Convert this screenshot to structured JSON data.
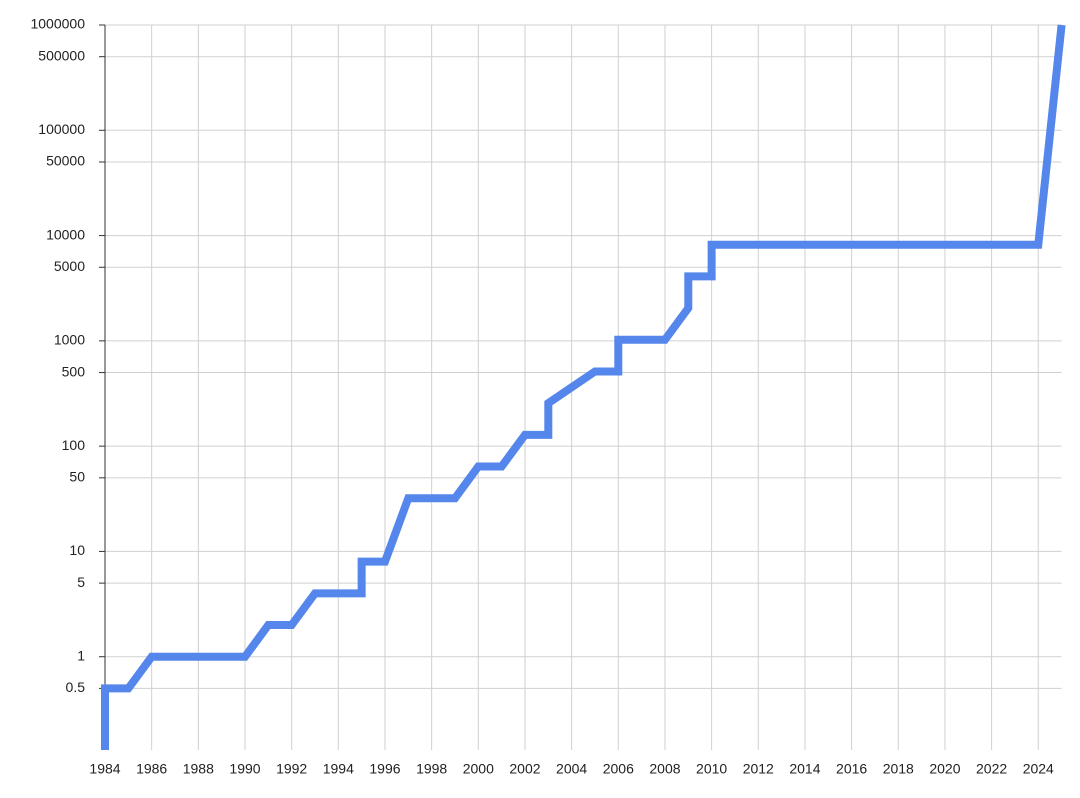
{
  "chart_data": {
    "type": "line",
    "x": [
      1984,
      1984,
      1985,
      1986,
      1990,
      1991,
      1992,
      1993,
      1995,
      1995,
      1996,
      1997,
      1999,
      2000,
      2001,
      2002,
      2003,
      2003,
      2005,
      2006,
      2006,
      2008,
      2009,
      2009,
      2010,
      2010,
      2024,
      2025
    ],
    "series": [
      {
        "color": "#5586eb",
        "values": [
          0.13,
          0.5,
          0.5,
          1,
          1,
          2,
          2,
          4,
          4,
          8,
          8,
          32,
          32,
          64,
          64,
          128,
          128,
          256,
          512,
          512,
          1024,
          1024,
          2048,
          4096,
          4096,
          8192,
          8192,
          1000000
        ]
      }
    ],
    "xlim": [
      1984,
      2025
    ],
    "xticks": [
      1984,
      1986,
      1988,
      1990,
      1992,
      1994,
      1996,
      1998,
      2000,
      2002,
      2004,
      2006,
      2008,
      2010,
      2012,
      2014,
      2016,
      2018,
      2020,
      2022,
      2024
    ],
    "ylim": [
      0.13,
      1000000
    ],
    "yticks": [
      1000000,
      500000,
      100000,
      50000,
      10000,
      5000,
      1000,
      500,
      100,
      50,
      10,
      5,
      1,
      0.5
    ],
    "log_y": true,
    "grid": true
  }
}
